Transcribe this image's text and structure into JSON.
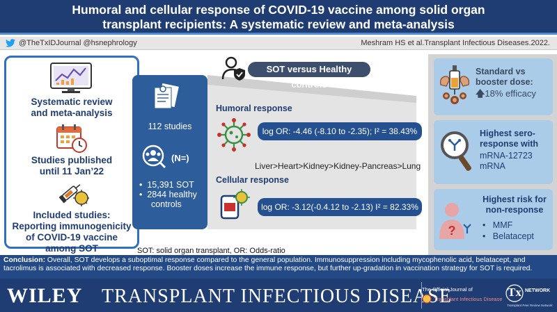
{
  "title": {
    "line1": "Humoral and cellular response of COVID-19 vaccine among solid organ",
    "line2": "transplant recipients: A systematic review and meta-analysis"
  },
  "handles": "@TheTxIDJournal @hsnephrology",
  "citation": "Meshram HS et al.Transplant Infectious Diseases.2022.",
  "left_panel": {
    "item1": [
      "Systematic review",
      "and meta-analysis"
    ],
    "item2": [
      "Studies published",
      "until 11 Jan’22"
    ],
    "item3": [
      "Included studies:",
      "Reporting immunogenicity",
      "of COVID-19 vaccine",
      "among SOT"
    ]
  },
  "stats": {
    "studies": "112 studies",
    "n_label": "(N=)",
    "sot": "15,391 SOT",
    "healthy_line1": "2844 healthy",
    "healthy_line2": "controls"
  },
  "comparison_label": "SOT versus Healthy controls",
  "humoral": {
    "label": "Humoral response",
    "result": "log OR: -4.46 (-8.10 to -2.35); I² = 38.43%",
    "organs": "Liver>Heart>Kidney>Kidney-Pancreas>Lung"
  },
  "cellular": {
    "label": "Cellular response",
    "result": "log OR: -3.12(-0.4.12 to -2.13) I² = 82.33%"
  },
  "right_panel": {
    "box1": {
      "lines": [
        "Standard vs",
        "booster dose:"
      ],
      "efficacy": "18% efficacy"
    },
    "box2": {
      "title_lines": [
        "Highest sero-",
        "response with"
      ],
      "body_lines": [
        "mRNA-12723",
        "mRNA"
      ]
    },
    "box3": {
      "title_lines": [
        "Highest risk for",
        "non-response"
      ],
      "bullets": [
        "MMF",
        "Belatacept"
      ]
    }
  },
  "abbreviations": "SOT: solid organ transplant, OR: Odds-ratio",
  "conclusion": {
    "label": "Conclusion:",
    "text": " Overall, SOT develops a suboptimal response compared to the general population. Immunosuppression including mycophenolic acid, belatacept, and tacrolimus is associated with decreased response. Booster doses increase the immune response, but further up-gradation in vaccination strategy for SOT is required."
  },
  "footer": {
    "publisher": "WILEY",
    "journal": "TRANSPLANT INFECTIOUS DISEASE",
    "official_line1": "The Official Journal of",
    "official_line2": "Transplant Infectious Disease",
    "tx_logo": "Tx",
    "tx_network": "NETWORK",
    "tx_sub": "Transplant Peer Review Network"
  },
  "colors": {
    "navy": "#1f3d72",
    "accent_blue": "#2f70c0",
    "light_blue": "#aacce9",
    "pill_blue": "#24508f",
    "virus_green": "#3c8f40",
    "virus_red": "#c8312c",
    "orange": "#e9a13b",
    "gray_panel": "#d3d3d3"
  },
  "icons": [
    "twitter-icon",
    "chart-monitor-icon",
    "calendar-clock-icon",
    "vaccine-virus-icon",
    "documents-icon",
    "people-search-icon",
    "person-shield-icon",
    "virus-icon",
    "phone-virus-icon",
    "muscle-vaccine-icon",
    "magnifier-antibody-icon",
    "person-question-icon"
  ]
}
